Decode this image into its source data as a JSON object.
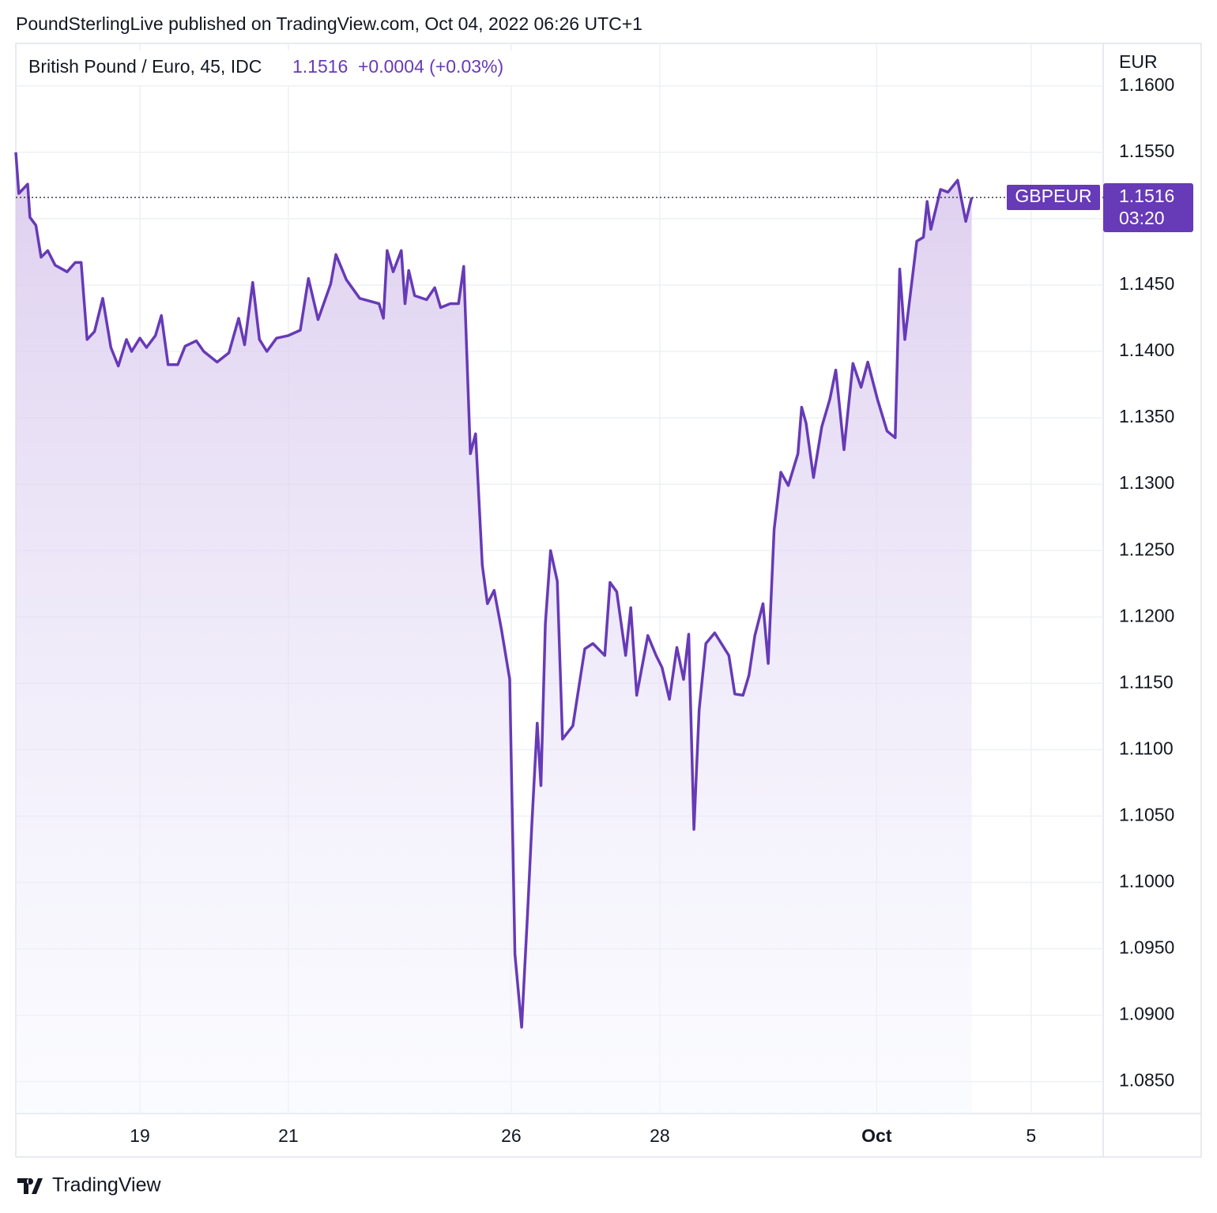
{
  "chart_data": {
    "type": "line",
    "publisher": "PoundSterlingLive published on TradingView.com, Oct 04, 2022 06:26 UTC+1",
    "title": "British Pound / Euro, 45, IDC",
    "last_value": 1.1516,
    "change_label": "+0.0004 (+0.03%)",
    "y_axis_label": "EUR",
    "countdown": "03:20",
    "footer": "TradingView",
    "xlim": [
      -1.67,
      12.97
    ],
    "xticks": [
      {
        "value": 0,
        "label": "19"
      },
      {
        "value": 2,
        "label": "21"
      },
      {
        "value": 5,
        "label": "26"
      },
      {
        "value": 7,
        "label": "28"
      },
      {
        "value": 9.92,
        "label": "Oct"
      },
      {
        "value": 12,
        "label": "5"
      }
    ],
    "ylim": [
      1.0826,
      1.1632
    ],
    "yticks": [
      {
        "value": 1.16,
        "label": "1.1600"
      },
      {
        "value": 1.155,
        "label": "1.1550"
      },
      {
        "value": 1.15,
        "label": "1.1500"
      },
      {
        "value": 1.145,
        "label": "1.1450"
      },
      {
        "value": 1.14,
        "label": "1.1400"
      },
      {
        "value": 1.135,
        "label": "1.1350"
      },
      {
        "value": 1.13,
        "label": "1.1300"
      },
      {
        "value": 1.125,
        "label": "1.1250"
      },
      {
        "value": 1.12,
        "label": "1.1200"
      },
      {
        "value": 1.115,
        "label": "1.1150"
      },
      {
        "value": 1.11,
        "label": "1.1100"
      },
      {
        "value": 1.105,
        "label": "1.1050"
      },
      {
        "value": 1.1,
        "label": "1.1000"
      },
      {
        "value": 1.095,
        "label": "1.0950"
      },
      {
        "value": 1.09,
        "label": "1.0900"
      },
      {
        "value": 1.085,
        "label": "1.0850"
      }
    ],
    "grid": true,
    "x": [
      -1.67,
      -1.63,
      -1.51,
      -1.48,
      -1.4,
      -1.33,
      -1.24,
      -1.14,
      -0.98,
      -0.87,
      -0.79,
      -0.71,
      -0.61,
      -0.5,
      -0.39,
      -0.29,
      -0.18,
      -0.11,
      0,
      0.09,
      0.21,
      0.29,
      0.38,
      0.51,
      0.61,
      0.76,
      0.86,
      1.04,
      1.2,
      1.33,
      1.41,
      1.52,
      1.61,
      1.71,
      1.84,
      2,
      2.16,
      2.27,
      2.4,
      2.57,
      2.64,
      2.78,
      2.96,
      3.22,
      3.28,
      3.33,
      3.41,
      3.52,
      3.57,
      3.62,
      3.7,
      3.86,
      3.97,
      4.05,
      4.18,
      4.29,
      4.36,
      4.45,
      4.52,
      4.61,
      4.68,
      4.77,
      4.87,
      4.98,
      5.05,
      5.14,
      5.22,
      5.28,
      5.35,
      5.4,
      5.46,
      5.53,
      5.62,
      5.69,
      5.83,
      5.99,
      6.1,
      6.26,
      6.33,
      6.42,
      6.54,
      6.61,
      6.69,
      6.79,
      6.84,
      6.95,
      7.03,
      7.13,
      7.23,
      7.32,
      7.39,
      7.46,
      7.53,
      7.62,
      7.74,
      7.93,
      8.01,
      8.12,
      8.2,
      8.28,
      8.39,
      8.46,
      8.54,
      8.63,
      8.73,
      8.86,
      8.91,
      8.97,
      9.07,
      9.18,
      9.29,
      9.37,
      9.48,
      9.6,
      9.71,
      9.8,
      9.93,
      10.06,
      10.17,
      10.23,
      10.3,
      10.46,
      10.55,
      10.6,
      10.65,
      10.78,
      10.88,
      11.01,
      11.12,
      11.2
    ],
    "series": [
      {
        "name": "GBPEUR",
        "color": "#673ab7",
        "values": [
          1.155,
          1.1519,
          1.1526,
          1.1501,
          1.1495,
          1.1471,
          1.1476,
          1.1465,
          1.146,
          1.1467,
          1.1467,
          1.1409,
          1.1415,
          1.144,
          1.1403,
          1.1389,
          1.1409,
          1.14,
          1.141,
          1.1403,
          1.1412,
          1.1427,
          1.139,
          1.139,
          1.1404,
          1.1408,
          1.14,
          1.1392,
          1.1399,
          1.1425,
          1.1405,
          1.1452,
          1.1409,
          1.14,
          1.141,
          1.1412,
          1.1416,
          1.1455,
          1.1424,
          1.1451,
          1.1473,
          1.1454,
          1.144,
          1.1436,
          1.1425,
          1.1476,
          1.146,
          1.1476,
          1.1436,
          1.1461,
          1.1442,
          1.1439,
          1.1448,
          1.1433,
          1.1436,
          1.1436,
          1.1464,
          1.1323,
          1.1338,
          1.1239,
          1.121,
          1.122,
          1.119,
          1.1153,
          1.0946,
          1.0891,
          1.0977,
          1.1046,
          1.112,
          1.1073,
          1.1195,
          1.125,
          1.1227,
          1.1108,
          1.1118,
          1.1176,
          1.118,
          1.1171,
          1.1226,
          1.1219,
          1.1171,
          1.1207,
          1.1141,
          1.1171,
          1.1186,
          1.1171,
          1.1162,
          1.1138,
          1.1177,
          1.1153,
          1.1187,
          1.104,
          1.113,
          1.118,
          1.1188,
          1.1171,
          1.1142,
          1.1141,
          1.1156,
          1.1186,
          1.121,
          1.1165,
          1.1266,
          1.1309,
          1.1299,
          1.1323,
          1.1358,
          1.1346,
          1.1305,
          1.1343,
          1.1364,
          1.1386,
          1.1326,
          1.1391,
          1.1373,
          1.1392,
          1.1364,
          1.134,
          1.1335,
          1.1462,
          1.1409,
          1.1483,
          1.1486,
          1.1513,
          1.1492,
          1.1522,
          1.152,
          1.1529,
          1.1498,
          1.1516
        ]
      }
    ]
  }
}
